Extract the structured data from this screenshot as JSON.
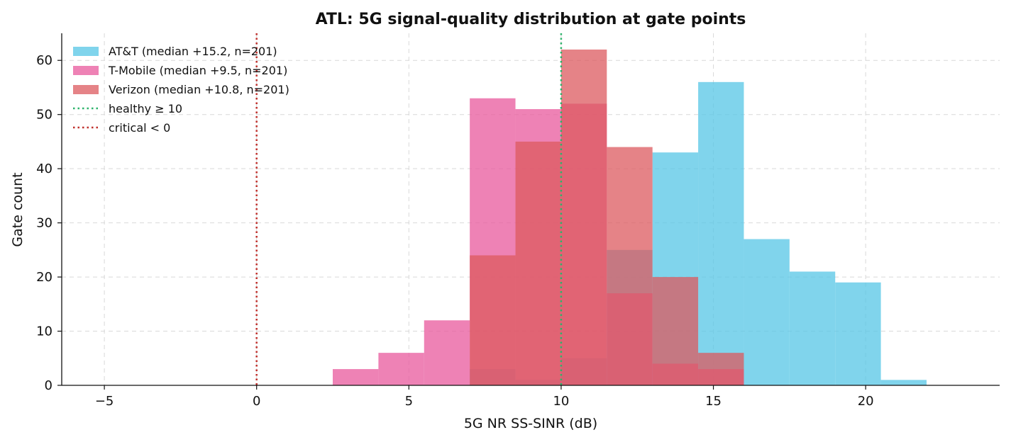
{
  "chart_data": {
    "type": "histogram",
    "title": "ATL: 5G signal-quality distribution at gate points",
    "xlabel": "5G NR SS-SINR (dB)",
    "ylabel": "Gate count",
    "xlim": [
      -6.4,
      24.4
    ],
    "ylim": [
      0,
      65
    ],
    "xticks": [
      -5,
      0,
      5,
      10,
      15,
      20
    ],
    "xtick_labels": [
      "−5",
      "0",
      "5",
      "10",
      "15",
      "20"
    ],
    "yticks": [
      0,
      10,
      20,
      30,
      40,
      50,
      60
    ],
    "ytick_labels": [
      "0",
      "10",
      "20",
      "30",
      "40",
      "50",
      "60"
    ],
    "grid": true,
    "legend_position": "top-left",
    "series": [
      {
        "name": "AT&T (median +15.2, n=201)",
        "color": "#56c5e6",
        "opacity": 0.75,
        "bins": [
          [
            7.0,
            8.5,
            3
          ],
          [
            8.5,
            10.0,
            1
          ],
          [
            10.0,
            11.5,
            5
          ],
          [
            11.5,
            13.0,
            25
          ],
          [
            13.0,
            14.5,
            43
          ],
          [
            14.5,
            16.0,
            56
          ],
          [
            16.0,
            17.5,
            27
          ],
          [
            17.5,
            19.0,
            21
          ],
          [
            19.0,
            20.5,
            19
          ],
          [
            20.5,
            22.0,
            1
          ]
        ]
      },
      {
        "name": "T-Mobile (median +9.5, n=201)",
        "color": "#e8589c",
        "opacity": 0.75,
        "bins": [
          [
            2.5,
            4.0,
            3
          ],
          [
            4.0,
            5.5,
            6
          ],
          [
            5.5,
            7.0,
            12
          ],
          [
            7.0,
            8.5,
            53
          ],
          [
            8.5,
            10.0,
            51
          ],
          [
            10.0,
            11.5,
            52
          ],
          [
            11.5,
            13.0,
            17
          ],
          [
            13.0,
            14.5,
            4
          ],
          [
            14.5,
            16.0,
            3
          ]
        ]
      },
      {
        "name": "Verizon (median +10.8, n=201)",
        "color": "#dc5a5f",
        "opacity": 0.75,
        "bins": [
          [
            7.0,
            8.5,
            24
          ],
          [
            8.5,
            10.0,
            45
          ],
          [
            10.0,
            11.5,
            62
          ],
          [
            11.5,
            13.0,
            44
          ],
          [
            13.0,
            14.5,
            20
          ],
          [
            14.5,
            16.0,
            6
          ]
        ]
      }
    ],
    "reference_lines": [
      {
        "name": "healthy ≥ 10",
        "x": 10,
        "color": "#2db36b",
        "style": "dotted"
      },
      {
        "name": "critical < 0",
        "x": 0,
        "color": "#c0302c",
        "style": "dotted"
      }
    ]
  }
}
